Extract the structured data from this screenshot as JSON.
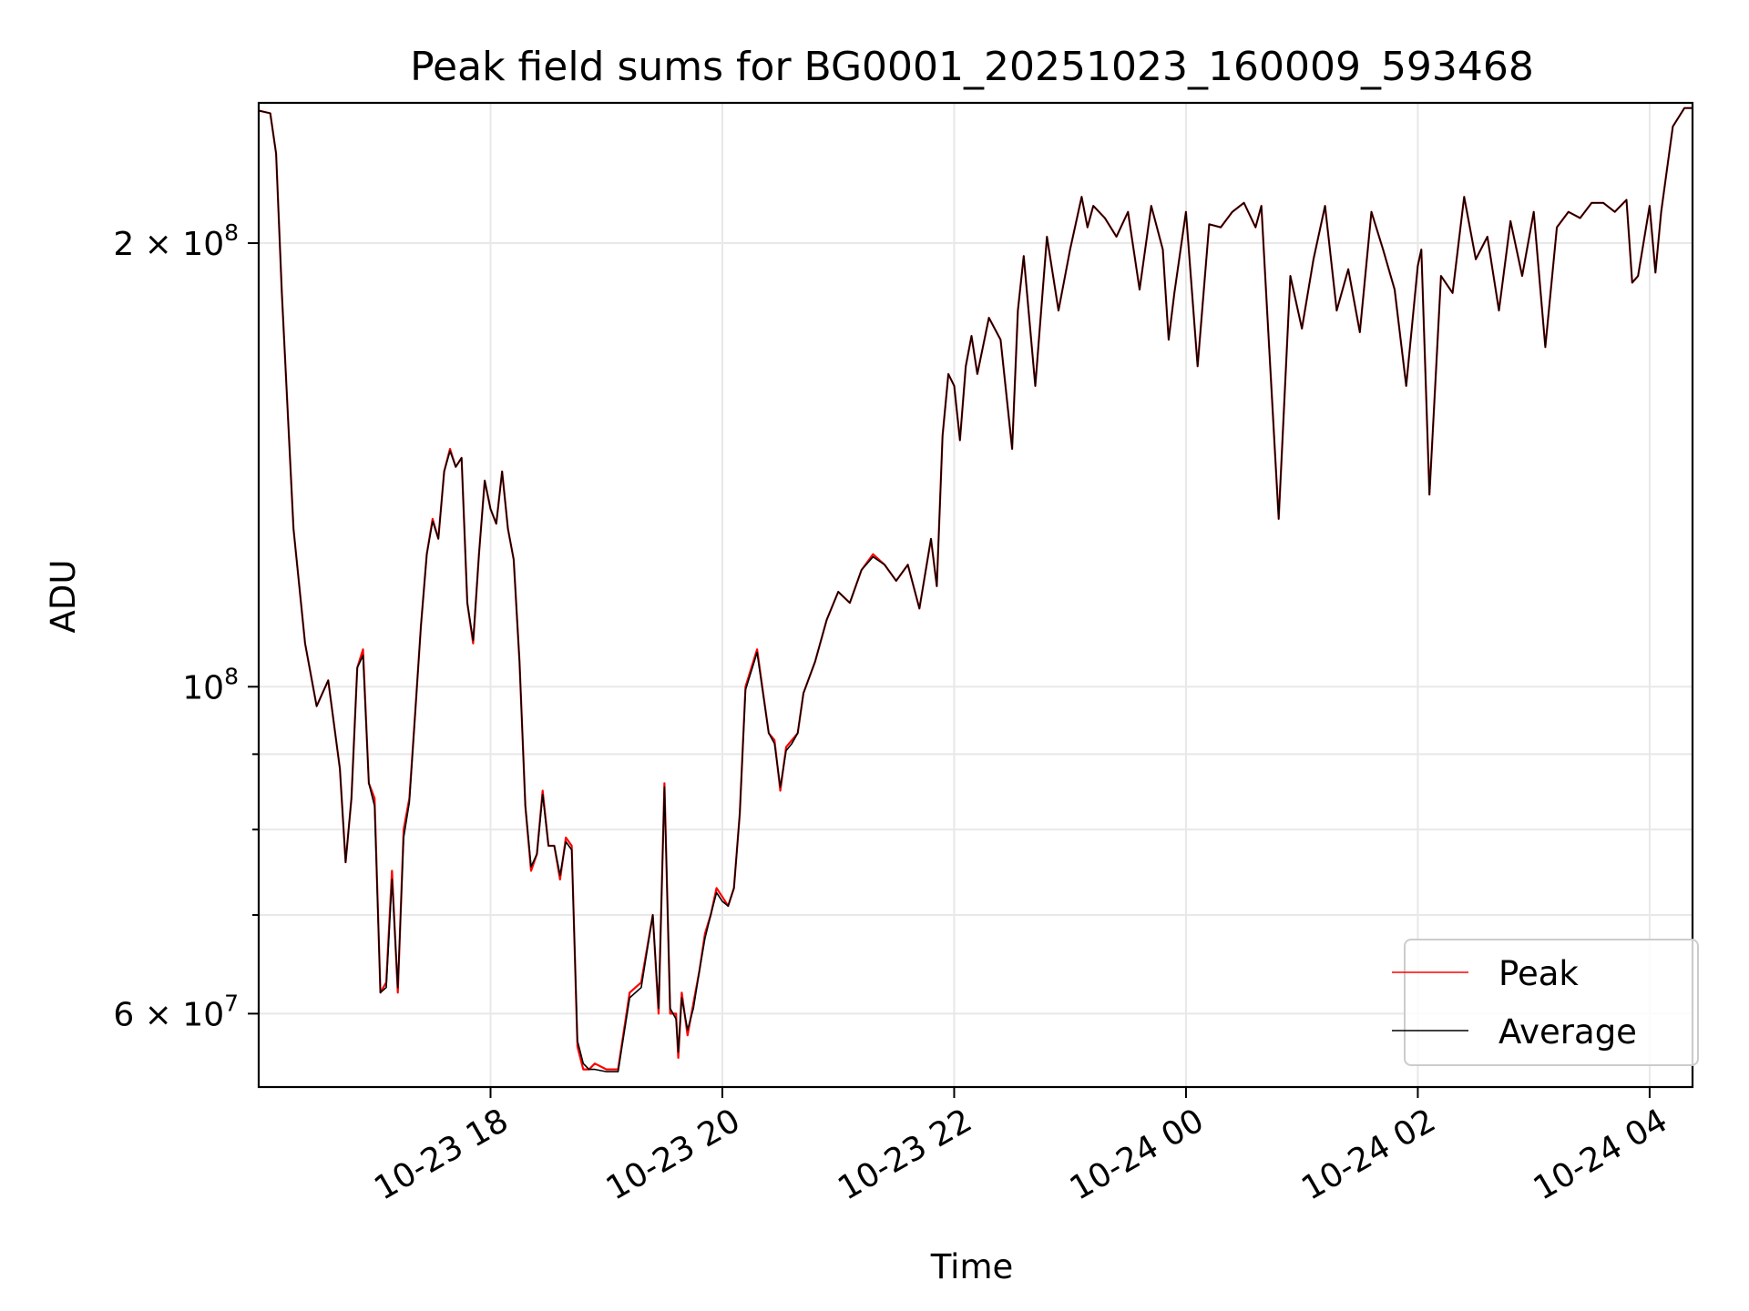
{
  "chart_data": {
    "type": "line",
    "title": "Peak field sums for BG0001_20251023_160009_593468",
    "xlabel": "Time",
    "ylabel": "ADU",
    "x_unit": "hours since 2025-10-23 00:00",
    "xlim": [
      16.0,
      28.37
    ],
    "ylim": [
      53500000,
      249000000
    ],
    "yscale": "log",
    "grid": true,
    "legend_position": "lower right",
    "x_ticks": [
      {
        "value": 18,
        "label": "10-23 18"
      },
      {
        "value": 20,
        "label": "10-23 20"
      },
      {
        "value": 22,
        "label": "10-23 22"
      },
      {
        "value": 24,
        "label": "10-24 00"
      },
      {
        "value": 26,
        "label": "10-24 02"
      },
      {
        "value": 28,
        "label": "10-24 04"
      }
    ],
    "y_ticks_major": [
      {
        "value": 60000000,
        "mantissa": "6",
        "exponent": "7",
        "label": "6 × 10^7"
      },
      {
        "value": 100000000,
        "mantissa": "",
        "exponent": "8",
        "label": "10^8"
      },
      {
        "value": 200000000,
        "mantissa": "2",
        "exponent": "8",
        "label": "2 × 10^8"
      }
    ],
    "y_ticks_minor": [
      70000000,
      80000000,
      90000000
    ],
    "series": [
      {
        "name": "Peak",
        "color": "#ff0000",
        "x": [
          16.0,
          16.1,
          16.15,
          16.2,
          16.3,
          16.4,
          16.5,
          16.6,
          16.7,
          16.75,
          16.8,
          16.85,
          16.9,
          16.95,
          17.0,
          17.05,
          17.1,
          17.15,
          17.2,
          17.25,
          17.3,
          17.35,
          17.4,
          17.45,
          17.5,
          17.55,
          17.6,
          17.65,
          17.7,
          17.75,
          17.8,
          17.85,
          17.9,
          17.95,
          18.0,
          18.05,
          18.1,
          18.15,
          18.2,
          18.25,
          18.3,
          18.35,
          18.4,
          18.45,
          18.5,
          18.55,
          18.6,
          18.65,
          18.7,
          18.75,
          18.8,
          18.85,
          18.9,
          19.0,
          19.1,
          19.2,
          19.3,
          19.4,
          19.45,
          19.5,
          19.55,
          19.6,
          19.62,
          19.65,
          19.7,
          19.75,
          19.8,
          19.85,
          19.9,
          19.95,
          20.0,
          20.05,
          20.1,
          20.15,
          20.2,
          20.3,
          20.4,
          20.45,
          20.5,
          20.55,
          20.6,
          20.65,
          20.7,
          20.8,
          20.9,
          21.0,
          21.1,
          21.2,
          21.3,
          21.4,
          21.5,
          21.6,
          21.7,
          21.8,
          21.85,
          21.9,
          21.95,
          22.0,
          22.05,
          22.1,
          22.15,
          22.2,
          22.3,
          22.4,
          22.5,
          22.55,
          22.6,
          22.7,
          22.8,
          22.9,
          23.0,
          23.1,
          23.15,
          23.2,
          23.3,
          23.4,
          23.5,
          23.6,
          23.7,
          23.8,
          23.85,
          23.9,
          24.0,
          24.1,
          24.2,
          24.3,
          24.4,
          24.5,
          24.6,
          24.65,
          24.7,
          24.8,
          24.9,
          25.0,
          25.1,
          25.2,
          25.3,
          25.4,
          25.5,
          25.6,
          25.7,
          25.8,
          25.9,
          26.0,
          26.03,
          26.1,
          26.2,
          26.3,
          26.4,
          26.5,
          26.6,
          26.7,
          26.8,
          26.9,
          27.0,
          27.1,
          27.2,
          27.3,
          27.4,
          27.5,
          27.6,
          27.7,
          27.8,
          27.85,
          27.9,
          28.0,
          28.05,
          28.1,
          28.2,
          28.3,
          28.37
        ],
        "y": [
          246000000,
          245000000,
          230000000,
          185000000,
          128000000,
          107000000,
          97000000,
          101000000,
          88000000,
          76000000,
          84000000,
          103000000,
          106000000,
          86000000,
          84000000,
          62000000,
          63000000,
          75000000,
          62000000,
          80000000,
          84000000,
          96000000,
          110000000,
          123000000,
          130000000,
          126000000,
          140000000,
          145000000,
          141000000,
          143000000,
          114000000,
          107000000,
          123000000,
          138000000,
          132000000,
          129000000,
          140000000,
          128000000,
          122000000,
          104000000,
          83000000,
          75000000,
          77000000,
          85000000,
          78000000,
          78000000,
          74000000,
          79000000,
          78000000,
          57000000,
          55000000,
          55000000,
          55500000,
          55000000,
          55000000,
          62000000,
          63000000,
          70000000,
          60000000,
          86000000,
          60000000,
          60000000,
          56000000,
          62000000,
          58000000,
          61000000,
          64000000,
          68000000,
          70000000,
          73000000,
          72000000,
          71000000,
          73000000,
          82000000,
          100000000,
          106000000,
          93000000,
          92000000,
          85000000,
          91000000,
          92000000,
          93000000,
          99000000,
          104000000,
          111000000,
          116000000,
          114000000,
          120000000,
          123000000,
          121000000,
          118000000,
          121000000,
          113000000,
          126000000,
          117000000,
          148000000,
          163000000,
          160000000,
          147000000,
          165000000,
          173000000,
          163000000,
          178000000,
          172000000,
          145000000,
          180000000,
          196000000,
          160000000,
          202000000,
          180000000,
          198000000,
          215000000,
          205000000,
          212000000,
          208000000,
          202000000,
          210000000,
          186000000,
          212000000,
          198000000,
          172000000,
          185000000,
          210000000,
          165000000,
          206000000,
          205000000,
          210000000,
          213000000,
          205000000,
          212000000,
          180000000,
          130000000,
          190000000,
          175000000,
          195000000,
          212000000,
          180000000,
          192000000,
          174000000,
          210000000,
          198000000,
          186000000,
          160000000,
          193000000,
          198000000,
          135000000,
          190000000,
          185000000,
          215000000,
          195000000,
          202000000,
          180000000,
          207000000,
          190000000,
          210000000,
          170000000,
          205000000,
          210000000,
          208000000,
          213000000,
          213000000,
          210000000,
          214000000,
          188000000,
          190000000,
          212000000,
          191000000,
          210000000,
          240000000,
          247000000,
          247000000
        ]
      },
      {
        "name": "Average",
        "color": "#000000",
        "x": [
          16.0,
          16.1,
          16.15,
          16.2,
          16.3,
          16.4,
          16.5,
          16.6,
          16.7,
          16.75,
          16.8,
          16.85,
          16.9,
          16.95,
          17.0,
          17.05,
          17.1,
          17.15,
          17.2,
          17.25,
          17.3,
          17.35,
          17.4,
          17.45,
          17.5,
          17.55,
          17.6,
          17.65,
          17.7,
          17.75,
          17.8,
          17.85,
          17.9,
          17.95,
          18.0,
          18.05,
          18.1,
          18.15,
          18.2,
          18.25,
          18.3,
          18.35,
          18.4,
          18.45,
          18.5,
          18.55,
          18.6,
          18.65,
          18.7,
          18.75,
          18.8,
          18.85,
          18.9,
          19.0,
          19.1,
          19.2,
          19.3,
          19.4,
          19.45,
          19.5,
          19.55,
          19.6,
          19.62,
          19.65,
          19.7,
          19.75,
          19.8,
          19.85,
          19.9,
          19.95,
          20.0,
          20.05,
          20.1,
          20.15,
          20.2,
          20.3,
          20.4,
          20.45,
          20.5,
          20.55,
          20.6,
          20.65,
          20.7,
          20.8,
          20.9,
          21.0,
          21.1,
          21.2,
          21.3,
          21.4,
          21.5,
          21.6,
          21.7,
          21.8,
          21.85,
          21.9,
          21.95,
          22.0,
          22.05,
          22.1,
          22.15,
          22.2,
          22.3,
          22.4,
          22.5,
          22.55,
          22.6,
          22.7,
          22.8,
          22.9,
          23.0,
          23.1,
          23.15,
          23.2,
          23.3,
          23.4,
          23.5,
          23.6,
          23.7,
          23.8,
          23.85,
          23.9,
          24.0,
          24.1,
          24.2,
          24.3,
          24.4,
          24.5,
          24.6,
          24.65,
          24.7,
          24.8,
          24.9,
          25.0,
          25.1,
          25.2,
          25.3,
          25.4,
          25.5,
          25.6,
          25.7,
          25.8,
          25.9,
          26.0,
          26.03,
          26.1,
          26.2,
          26.3,
          26.4,
          26.5,
          26.6,
          26.7,
          26.8,
          26.9,
          27.0,
          27.1,
          27.2,
          27.3,
          27.4,
          27.5,
          27.6,
          27.7,
          27.8,
          27.85,
          27.9,
          28.0,
          28.05,
          28.1,
          28.2,
          28.3,
          28.37
        ],
        "y": [
          246000000,
          245000000,
          230000000,
          185000000,
          128000000,
          107000000,
          97000000,
          101000000,
          88000000,
          76000000,
          84000000,
          103000000,
          105000000,
          86000000,
          83000000,
          62000000,
          62500000,
          74000000,
          62500000,
          79000000,
          83500000,
          96000000,
          110000000,
          123000000,
          129500000,
          126000000,
          140000000,
          144500000,
          141000000,
          143000000,
          114000000,
          107500000,
          123000000,
          138000000,
          132000000,
          129000000,
          140000000,
          128000000,
          122000000,
          104000000,
          83000000,
          75500000,
          77000000,
          84500000,
          78000000,
          78000000,
          74500000,
          78500000,
          77500000,
          57500000,
          55500000,
          55000000,
          55000000,
          54800000,
          54800000,
          61500000,
          62500000,
          70000000,
          60500000,
          85500000,
          60500000,
          59500000,
          56500000,
          61500000,
          58500000,
          60500000,
          64000000,
          67500000,
          70000000,
          72500000,
          71500000,
          71000000,
          73000000,
          82000000,
          99500000,
          105500000,
          93000000,
          91500000,
          85500000,
          90500000,
          91500000,
          93000000,
          99000000,
          104000000,
          111000000,
          116000000,
          114000000,
          120000000,
          122500000,
          121000000,
          118000000,
          121000000,
          113000000,
          126000000,
          117000000,
          148000000,
          163000000,
          160000000,
          147000000,
          165000000,
          173000000,
          163000000,
          178000000,
          172000000,
          145000000,
          180000000,
          196000000,
          160000000,
          202000000,
          180000000,
          198000000,
          215000000,
          205000000,
          212000000,
          208000000,
          202000000,
          210000000,
          186000000,
          212000000,
          198000000,
          172000000,
          185000000,
          210000000,
          165000000,
          206000000,
          205000000,
          210000000,
          213000000,
          205000000,
          212000000,
          180000000,
          130000000,
          190000000,
          175000000,
          195000000,
          212000000,
          180000000,
          192000000,
          174000000,
          210000000,
          198000000,
          186000000,
          160000000,
          193000000,
          198000000,
          135000000,
          190000000,
          185000000,
          215000000,
          195000000,
          202000000,
          180000000,
          207000000,
          190000000,
          210000000,
          170000000,
          205000000,
          210000000,
          208000000,
          213000000,
          213000000,
          210000000,
          214000000,
          188000000,
          190000000,
          212000000,
          191000000,
          210000000,
          240000000,
          247000000,
          247000000
        ]
      }
    ]
  }
}
